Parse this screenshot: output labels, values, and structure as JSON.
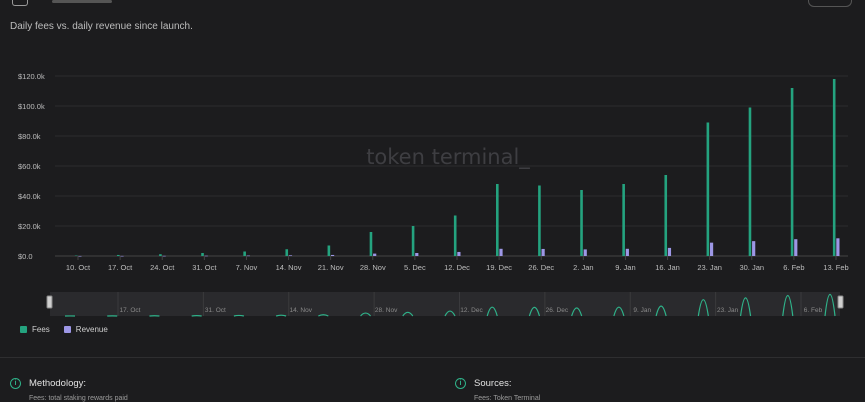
{
  "header": {
    "subtitle": "Daily fees vs. daily revenue since launch."
  },
  "watermark": "token terminal_",
  "colors": {
    "fees": "#24a37f",
    "revenue": "#9d97e6",
    "background": "#1c1c1e",
    "accent": "#2fb38a"
  },
  "legend": {
    "fees_label": "Fees",
    "revenue_label": "Revenue"
  },
  "navigator": {
    "labels": [
      "17. Oct",
      "31. Oct",
      "14. Nov",
      "28. Nov",
      "12. Dec",
      "26. Dec",
      "9. Jan",
      "23. Jan",
      "6. Feb"
    ]
  },
  "methodology": {
    "title": "Methodology:",
    "text": "Fees: total staking rewards paid"
  },
  "sources": {
    "title": "Sources:",
    "text": "Fees: Token Terminal"
  },
  "chart_data": {
    "type": "bar",
    "y_tick_labels": [
      "$0.0",
      "$20.0k",
      "$40.0k",
      "$60.0k",
      "$80.0k",
      "$100.0k",
      "$120.0k"
    ],
    "x_tick_labels": [
      "10. Oct",
      "17. Oct",
      "24. Oct",
      "31. Oct",
      "7. Nov",
      "14. Nov",
      "21. Nov",
      "28. Nov",
      "5. Dec",
      "12. Dec",
      "19. Dec",
      "26. Dec",
      "2. Jan",
      "9. Jan",
      "16. Jan",
      "23. Jan",
      "30. Jan",
      "6. Feb",
      "13. Feb"
    ],
    "ylim": [
      0,
      120000
    ],
    "grid": true,
    "legend_position": "bottom-left",
    "series": [
      {
        "name": "Fees",
        "points": [
          {
            "x": "7. Oct",
            "y": 300
          },
          {
            "x": "14. Oct",
            "y": 700
          },
          {
            "x": "21. Oct",
            "y": 1200
          },
          {
            "x": "28. Oct",
            "y": 2000
          },
          {
            "x": "4. Nov",
            "y": 3000
          },
          {
            "x": "11. Nov",
            "y": 4500
          },
          {
            "x": "18. Nov",
            "y": 7000
          },
          {
            "x": "25. Nov",
            "y": 16000
          },
          {
            "x": "2. Dec",
            "y": 20000
          },
          {
            "x": "9. Dec",
            "y": 27000
          },
          {
            "x": "16. Dec",
            "y": 48000
          },
          {
            "x": "23. Dec",
            "y": 47000
          },
          {
            "x": "30. Dec",
            "y": 44000
          },
          {
            "x": "6. Jan",
            "y": 48000
          },
          {
            "x": "13. Jan",
            "y": 54000
          },
          {
            "x": "20. Jan",
            "y": 89000
          },
          {
            "x": "27. Jan",
            "y": 99000
          },
          {
            "x": "3. Feb",
            "y": 112000
          },
          {
            "x": "10. Feb",
            "y": 118000
          }
        ]
      },
      {
        "name": "Revenue",
        "points": [
          {
            "x": "7. Oct",
            "y": 30
          },
          {
            "x": "14. Oct",
            "y": 70
          },
          {
            "x": "21. Oct",
            "y": 120
          },
          {
            "x": "28. Oct",
            "y": 200
          },
          {
            "x": "4. Nov",
            "y": 300
          },
          {
            "x": "11. Nov",
            "y": 450
          },
          {
            "x": "18. Nov",
            "y": 700
          },
          {
            "x": "25. Nov",
            "y": 1600
          },
          {
            "x": "2. Dec",
            "y": 2000
          },
          {
            "x": "9. Dec",
            "y": 2700
          },
          {
            "x": "16. Dec",
            "y": 4800
          },
          {
            "x": "23. Dec",
            "y": 4700
          },
          {
            "x": "30. Dec",
            "y": 4400
          },
          {
            "x": "6. Jan",
            "y": 4800
          },
          {
            "x": "13. Jan",
            "y": 5400
          },
          {
            "x": "20. Jan",
            "y": 8900
          },
          {
            "x": "27. Jan",
            "y": 9900
          },
          {
            "x": "3. Feb",
            "y": 11200
          },
          {
            "x": "10. Feb",
            "y": 11800
          }
        ]
      }
    ]
  }
}
